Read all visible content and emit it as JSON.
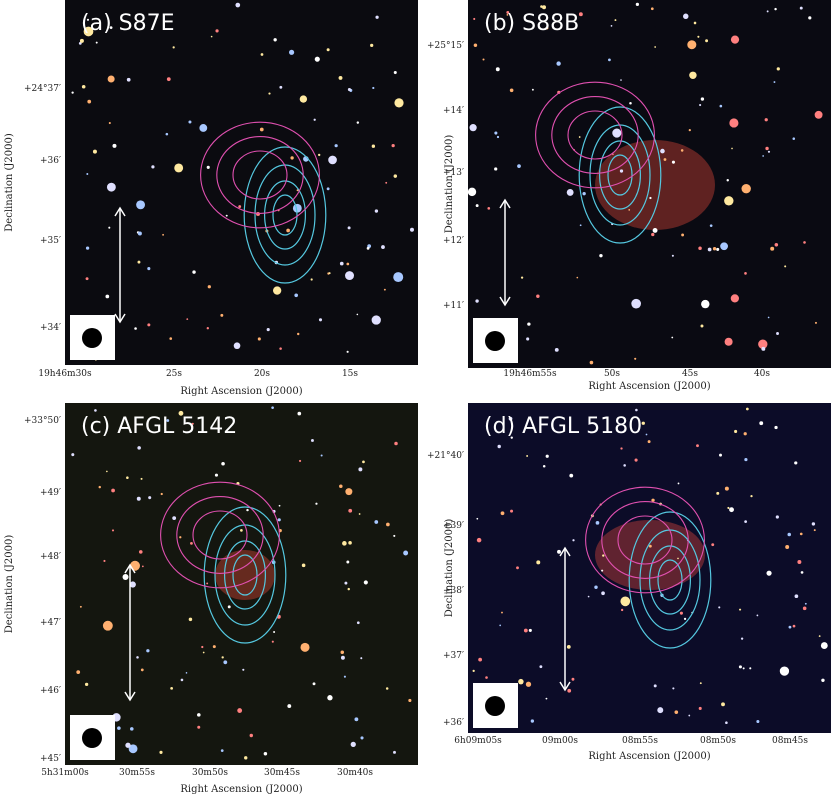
{
  "panels": [
    {
      "title": "(a) S87E",
      "y_label": "Declination (J2000)",
      "x_label": "Right Ascension (J2000)",
      "yticks": [
        "+24°37′",
        "+36′",
        "+35′",
        "+34′"
      ],
      "xticks": [
        "19h46m30s",
        "25s",
        "20s",
        "15s"
      ]
    },
    {
      "title": "(b) S88B",
      "y_label": "Declination (J2000)",
      "x_label": "Right Ascension (J2000)",
      "yticks": [
        "+25°15′",
        "+14′",
        "+13′",
        "+12′",
        "+11′"
      ],
      "xticks": [
        "19h46m55s",
        "50s",
        "45s",
        "40s"
      ]
    },
    {
      "title": "(c) AFGL 5142",
      "y_label": "Declination (J2000)",
      "x_label": "Right Ascension (J2000)",
      "yticks": [
        "+33°50′",
        "+49′",
        "+48′",
        "+47′",
        "+46′",
        "+45′"
      ],
      "xticks": [
        "5h31m00s",
        "30m55s",
        "30m50s",
        "30m45s",
        "30m40s"
      ]
    },
    {
      "title": "(d) AFGL 5180",
      "y_label": "Declination (J2000)",
      "x_label": "Right Ascension (J2000)",
      "yticks": [
        "+21°40′",
        "+39′",
        "+38′",
        "+37′",
        "+36′"
      ],
      "xticks": [
        "6h09m05s",
        "09m00s",
        "08m55s",
        "08m50s",
        "08m45s"
      ]
    }
  ]
}
